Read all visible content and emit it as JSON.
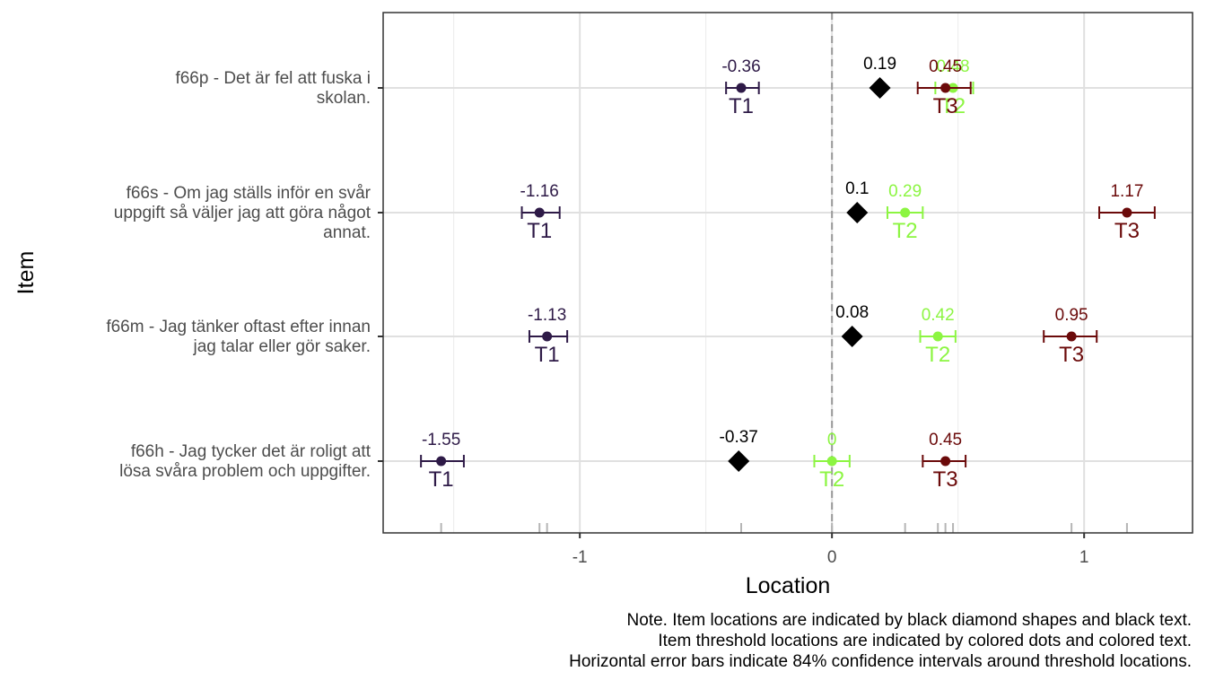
{
  "chart_data": {
    "type": "scatter",
    "xlabel": "Location",
    "ylabel": "Item",
    "xlim": [
      -1.78,
      1.43
    ],
    "x_ticks": [
      -1,
      0,
      1
    ],
    "x_tick_labels": [
      "-1",
      "0",
      "1"
    ],
    "grid": true,
    "reference_line_x": 0,
    "items": [
      {
        "label": "f66p - Det är fel att fuska i skolan.",
        "label_lines": [
          "f66p - Det är fel att fuska i",
          "skolan."
        ],
        "location": 0.19,
        "location_label": "0.19",
        "thresholds": [
          {
            "name": "T1",
            "value": -0.36,
            "value_label": "-0.36",
            "ci": [
              -0.42,
              -0.29
            ],
            "color": "#2E1A47"
          },
          {
            "name": "T2",
            "value": 0.48,
            "value_label": "0.48",
            "ci": [
              0.41,
              0.56
            ],
            "color": "#8CF542"
          },
          {
            "name": "T3",
            "value": 0.45,
            "value_label": "0.45",
            "ci": [
              0.34,
              0.55
            ],
            "color": "#6B0A0A"
          }
        ]
      },
      {
        "label": "f66s - Om jag ställs inför en svår uppgift så väljer jag att göra något annat.",
        "label_lines": [
          "f66s - Om jag ställs inför en svår",
          "uppgift så väljer jag att göra något",
          "annat."
        ],
        "location": 0.1,
        "location_label": "0.1",
        "thresholds": [
          {
            "name": "T1",
            "value": -1.16,
            "value_label": "-1.16",
            "ci": [
              -1.23,
              -1.08
            ],
            "color": "#2E1A47"
          },
          {
            "name": "T2",
            "value": 0.29,
            "value_label": "0.29",
            "ci": [
              0.22,
              0.36
            ],
            "color": "#8CF542"
          },
          {
            "name": "T3",
            "value": 1.17,
            "value_label": "1.17",
            "ci": [
              1.06,
              1.28
            ],
            "color": "#6B0A0A"
          }
        ]
      },
      {
        "label": "f66m - Jag tänker oftast efter innan jag talar eller gör saker.",
        "label_lines": [
          "f66m - Jag tänker oftast efter innan",
          "jag talar eller gör saker."
        ],
        "location": 0.08,
        "location_label": "0.08",
        "thresholds": [
          {
            "name": "T1",
            "value": -1.13,
            "value_label": "-1.13",
            "ci": [
              -1.2,
              -1.05
            ],
            "color": "#2E1A47"
          },
          {
            "name": "T2",
            "value": 0.42,
            "value_label": "0.42",
            "ci": [
              0.35,
              0.49
            ],
            "color": "#8CF542"
          },
          {
            "name": "T3",
            "value": 0.95,
            "value_label": "0.95",
            "ci": [
              0.84,
              1.05
            ],
            "color": "#6B0A0A"
          }
        ]
      },
      {
        "label": "f66h - Jag tycker det är roligt att lösa svåra problem och uppgifter.",
        "label_lines": [
          "f66h - Jag tycker det är roligt att",
          "lösa svåra problem och uppgifter."
        ],
        "location": -0.37,
        "location_label": "-0.37",
        "thresholds": [
          {
            "name": "T1",
            "value": -1.55,
            "value_label": "-1.55",
            "ci": [
              -1.63,
              -1.46
            ],
            "color": "#2E1A47"
          },
          {
            "name": "T2",
            "value": 0,
            "value_label": "0",
            "ci": [
              -0.07,
              0.07
            ],
            "color": "#8CF542"
          },
          {
            "name": "T3",
            "value": 0.45,
            "value_label": "0.45",
            "ci": [
              0.36,
              0.53
            ],
            "color": "#6B0A0A"
          }
        ]
      }
    ],
    "rug_values": [
      -1.55,
      -1.16,
      -1.13,
      -0.36,
      0,
      0.29,
      0.42,
      0.45,
      0.48,
      0.95,
      1.17
    ]
  },
  "note_lines": [
    "Note. Item locations are indicated by black diamond shapes and black text.",
    "Item threshold locations are indicated by colored dots and colored text.",
    "Horizontal error bars indicate 84% confidence intervals around threshold locations."
  ]
}
